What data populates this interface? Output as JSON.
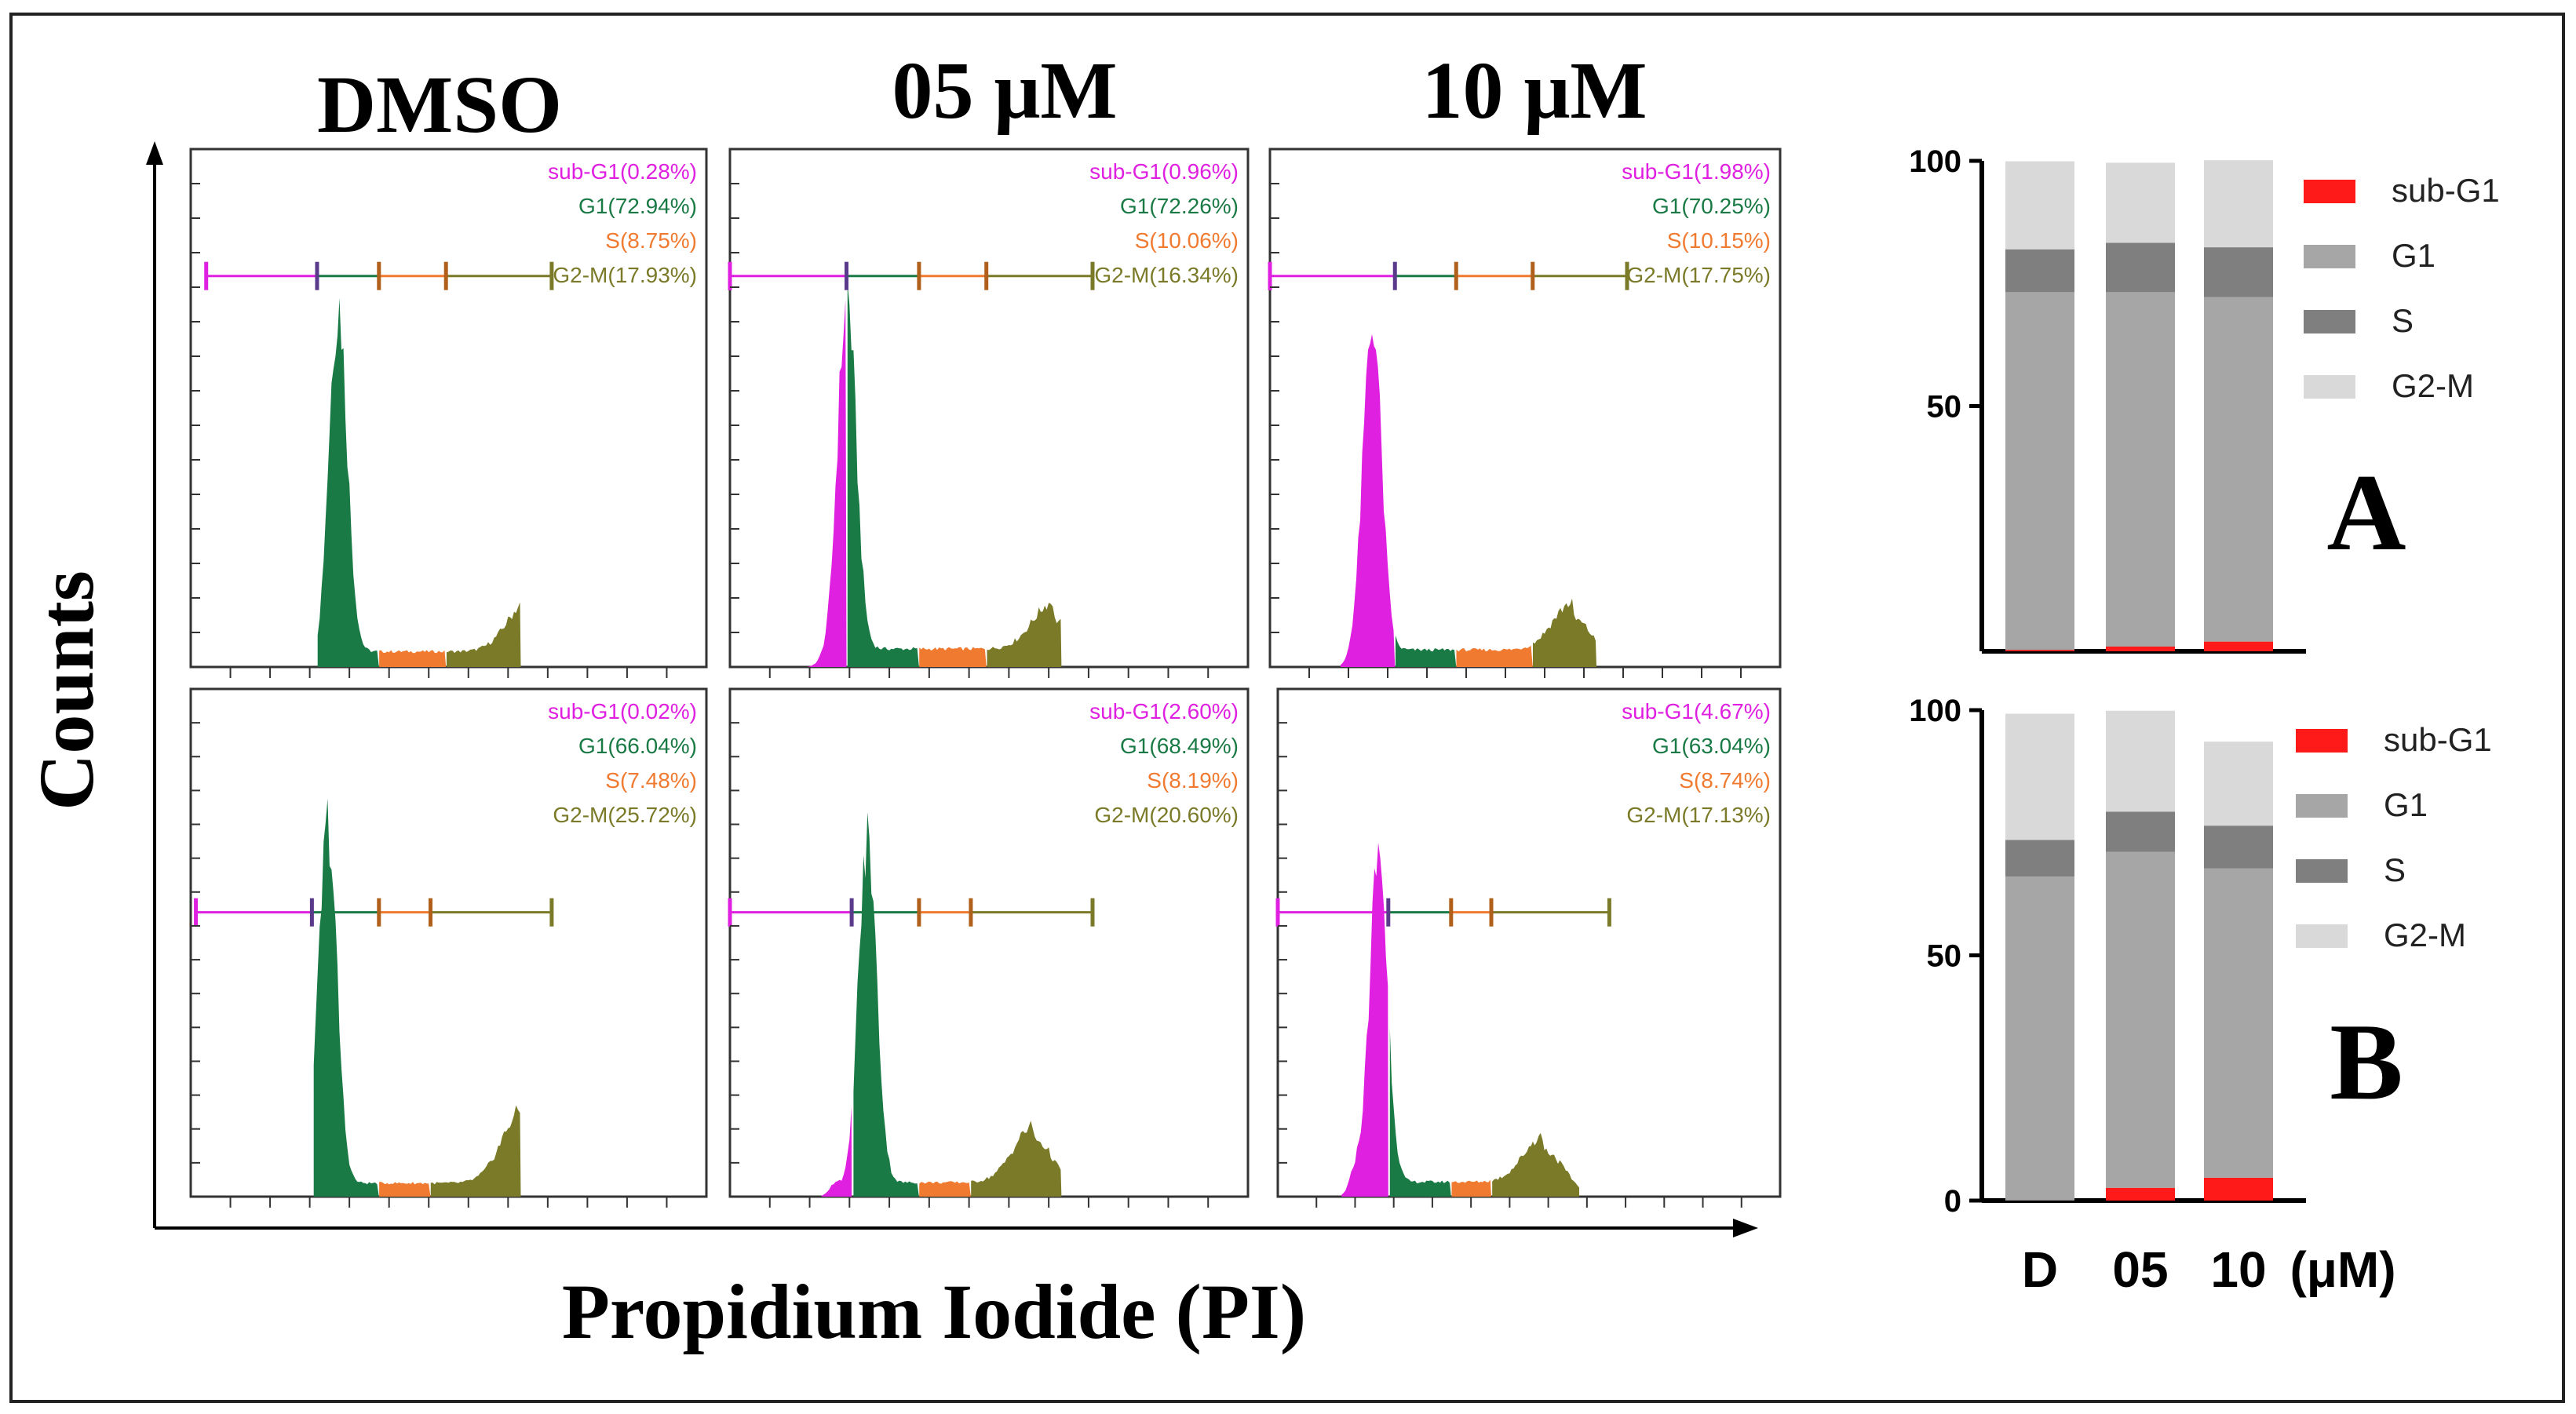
{
  "figure": {
    "y_axis_label": "Counts",
    "x_axis_label": "Propidium Iodide (PI)",
    "columns": [
      "DMSO",
      "05 μM",
      "10 μM"
    ]
  },
  "colors": {
    "subG1": "#e020e0",
    "G1": "#1a7a45",
    "S": "#f07a30",
    "G2M": "#7a7a28",
    "bar_subG1": "#ff1a1a",
    "bar_G1": "#a6a6a6",
    "bar_S": "#7f7f7f",
    "bar_G2M": "#d9d9d9"
  },
  "chart_data": [
    {
      "type": "histogram",
      "panel": "row 1 - DMSO",
      "gate_labels": [
        "sub-G1(0.28%)",
        "G1(72.94%)",
        "S(8.75%)",
        "G2-M(17.93%)"
      ],
      "sub_g1": 0.28,
      "g1": 72.94,
      "s": 8.75,
      "g2m": 17.93
    },
    {
      "type": "histogram",
      "panel": "row 1 - 05 μM",
      "gate_labels": [
        "sub-G1(0.96%)",
        "G1(72.26%)",
        "S(10.06%)",
        "G2-M(16.34%)"
      ],
      "sub_g1": 0.96,
      "g1": 72.26,
      "s": 10.06,
      "g2m": 16.34
    },
    {
      "type": "histogram",
      "panel": "row 1 - 10 μM",
      "gate_labels": [
        "sub-G1(1.98%)",
        "G1(70.25%)",
        "S(10.15%)",
        "G2-M(17.75%)"
      ],
      "sub_g1": 1.98,
      "g1": 70.25,
      "s": 10.15,
      "g2m": 17.75
    },
    {
      "type": "histogram",
      "panel": "row 2 - DMSO",
      "gate_labels": [
        "sub-G1(0.02%)",
        "G1(66.04%)",
        "S(7.48%)",
        "G2-M(25.72%)"
      ],
      "sub_g1": 0.02,
      "g1": 66.04,
      "s": 7.48,
      "g2m": 25.72
    },
    {
      "type": "histogram",
      "panel": "row 2 - 05 μM",
      "gate_labels": [
        "sub-G1(2.60%)",
        "G1(68.49%)",
        "S(8.19%)",
        "G2-M(20.60%)"
      ],
      "sub_g1": 2.6,
      "g1": 68.49,
      "s": 8.19,
      "g2m": 20.6
    },
    {
      "type": "histogram",
      "panel": "row 2 - 10 μM",
      "gate_labels": [
        "sub-G1(4.67%)",
        "G1(63.04%)",
        "S(8.74%)",
        "G2-M(17.13%)"
      ],
      "sub_g1": 4.67,
      "g1": 63.04,
      "s": 8.74,
      "g2m": 17.13
    },
    {
      "type": "bar",
      "stacked": true,
      "panel_label": "A",
      "categories": [
        "D",
        "05",
        "10"
      ],
      "series": [
        {
          "name": "sub-G1",
          "values": [
            0.28,
            0.96,
            1.98
          ]
        },
        {
          "name": "G1",
          "values": [
            72.94,
            72.26,
            70.25
          ]
        },
        {
          "name": "S",
          "values": [
            8.75,
            10.06,
            10.15
          ]
        },
        {
          "name": "G2-M",
          "values": [
            17.93,
            16.34,
            17.75
          ]
        }
      ],
      "yticks": [
        "100",
        "50"
      ],
      "ylim": [
        0,
        100
      ]
    },
    {
      "type": "bar",
      "stacked": true,
      "panel_label": "B",
      "categories": [
        "D",
        "05",
        "10"
      ],
      "xlabel_unit": "(μM)",
      "series": [
        {
          "name": "sub-G1",
          "values": [
            0.02,
            2.6,
            4.67
          ]
        },
        {
          "name": "G1",
          "values": [
            66.04,
            68.49,
            63.04
          ]
        },
        {
          "name": "S",
          "values": [
            7.48,
            8.19,
            8.74
          ]
        },
        {
          "name": "G2-M",
          "values": [
            25.72,
            20.6,
            17.13
          ]
        }
      ],
      "yticks": [
        "100",
        "50",
        "0"
      ],
      "ylim": [
        0,
        100
      ]
    }
  ]
}
